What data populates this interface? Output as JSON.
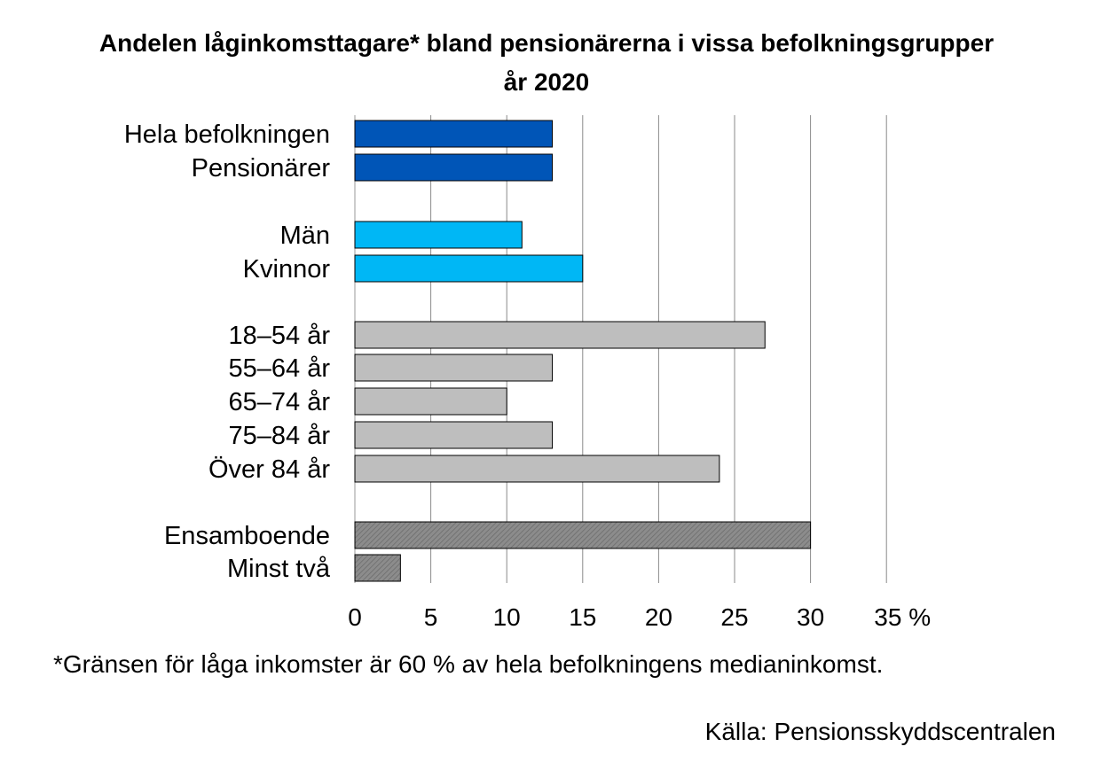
{
  "chart_data": {
    "type": "bar",
    "orientation": "horizontal",
    "title_line1": "Andelen låginkomsttagare* bland pensionärerna i vissa befolkningsgrupper",
    "title_line2": "år 2020",
    "categories": [
      "Hela befolkningen",
      "Pensionärer",
      "Män",
      "Kvinnor",
      "18–54 år",
      "55–64 år",
      "65–74 år",
      "75–84 år",
      "Över 84 år",
      "Ensamboende",
      "Minst två"
    ],
    "values": [
      13,
      13,
      11,
      15,
      27,
      13,
      10,
      13,
      24,
      30,
      3
    ],
    "groups": [
      {
        "categories": [
          "Hela befolkningen",
          "Pensionärer"
        ],
        "color": "#0055B7",
        "pattern": "solid"
      },
      {
        "categories": [
          "Män",
          "Kvinnor"
        ],
        "color": "#00B7F5",
        "pattern": "solid"
      },
      {
        "categories": [
          "18–54 år",
          "55–64 år",
          "65–74 år",
          "75–84 år",
          "Över 84 år"
        ],
        "color": "#BEBEBE",
        "pattern": "solid"
      },
      {
        "categories": [
          "Ensamboende",
          "Minst två"
        ],
        "color": "#8C8C8C",
        "pattern": "hatched"
      }
    ],
    "xlim": [
      0,
      35
    ],
    "xticks": [
      "0",
      "5",
      "10",
      "15",
      "20",
      "25",
      "30",
      "35 %"
    ],
    "grid": "vertical",
    "footnote": "*Gränsen för låga inkomster är 60 % av hela befolkningens medianinkomst.",
    "source": "Källa: Pensionsskyddscentralen"
  }
}
